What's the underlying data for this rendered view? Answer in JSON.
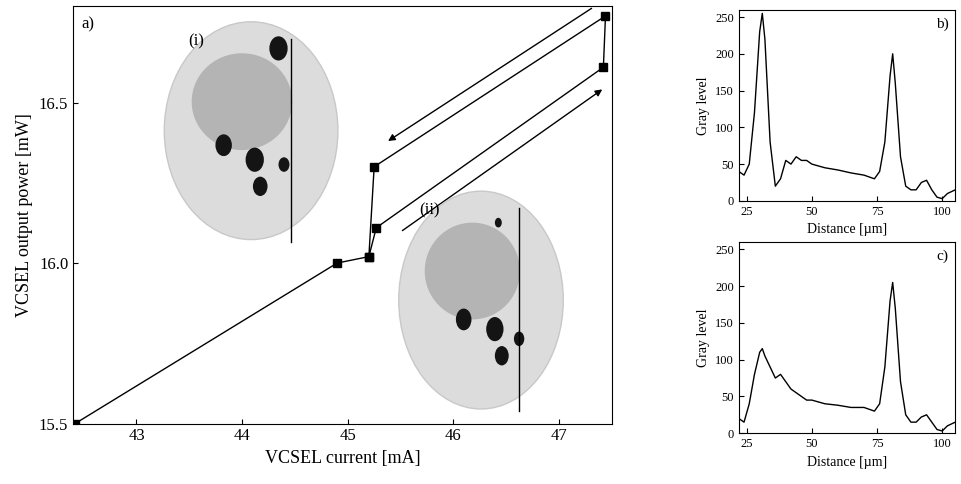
{
  "chart_data": [
    {
      "type": "line",
      "annotations": [
        "a)",
        "(i)",
        "(ii)"
      ],
      "x_label": "VCSEL current [mA]",
      "y_label": "VCSEL output power [mW]",
      "x": [
        42.42,
        44.9,
        45.2,
        45.27,
        47.42,
        47.44,
        45.25,
        45.2
      ],
      "values": [
        15.5,
        16.0,
        16.02,
        16.11,
        16.61,
        16.77,
        16.3,
        16.02
      ],
      "color": "#000000",
      "marker": "square",
      "line_style": "solid",
      "xlim": [
        42.4,
        47.5
      ],
      "ylim": [
        15.5,
        16.8
      ],
      "xticks": [
        43,
        44,
        45,
        46,
        47
      ],
      "yticks": [
        {
          "value": 15.5,
          "label": "15.5"
        },
        {
          "value": 16.0,
          "label": "16.0"
        },
        {
          "value": 16.5,
          "label": "16.5"
        }
      ]
    },
    {
      "type": "line",
      "annotations": [
        "b)"
      ],
      "x_label": "Distance [µm]",
      "y_label": "Gray level",
      "x": [
        22,
        24,
        26,
        28,
        30,
        31,
        32,
        34,
        36,
        38,
        40,
        42,
        44,
        46,
        48,
        50,
        55,
        60,
        65,
        70,
        74,
        76,
        78,
        80,
        81,
        82,
        84,
        86,
        88,
        90,
        92,
        94,
        96,
        98,
        100,
        102,
        105
      ],
      "values": [
        40,
        35,
        50,
        120,
        230,
        255,
        220,
        80,
        20,
        30,
        55,
        50,
        60,
        55,
        55,
        50,
        45,
        42,
        38,
        35,
        30,
        40,
        80,
        170,
        200,
        160,
        60,
        20,
        15,
        15,
        25,
        28,
        15,
        5,
        3,
        10,
        15
      ],
      "color": "#000000",
      "line_style": "solid",
      "xlim": [
        22,
        105
      ],
      "ylim": [
        0,
        260
      ],
      "xticks": [
        25,
        50,
        75,
        100
      ],
      "yticks": [
        0,
        50,
        100,
        150,
        200,
        250
      ]
    },
    {
      "type": "line",
      "annotations": [
        "c)"
      ],
      "x_label": "Distance [µm]",
      "y_label": "Gray level",
      "x": [
        22,
        24,
        26,
        28,
        30,
        31,
        32,
        34,
        36,
        38,
        40,
        42,
        44,
        46,
        48,
        50,
        55,
        60,
        65,
        70,
        74,
        76,
        78,
        80,
        81,
        82,
        84,
        86,
        88,
        90,
        92,
        94,
        96,
        98,
        100,
        102,
        105
      ],
      "values": [
        20,
        15,
        40,
        80,
        110,
        115,
        105,
        90,
        75,
        80,
        70,
        60,
        55,
        50,
        45,
        45,
        40,
        38,
        35,
        35,
        30,
        40,
        90,
        180,
        205,
        170,
        70,
        25,
        15,
        15,
        22,
        25,
        15,
        5,
        3,
        10,
        15
      ],
      "color": "#000000",
      "line_style": "solid",
      "xlim": [
        22,
        105
      ],
      "ylim": [
        0,
        260
      ],
      "xticks": [
        25,
        50,
        75,
        100
      ],
      "yticks": [
        0,
        50,
        100,
        150,
        200,
        250
      ]
    }
  ]
}
